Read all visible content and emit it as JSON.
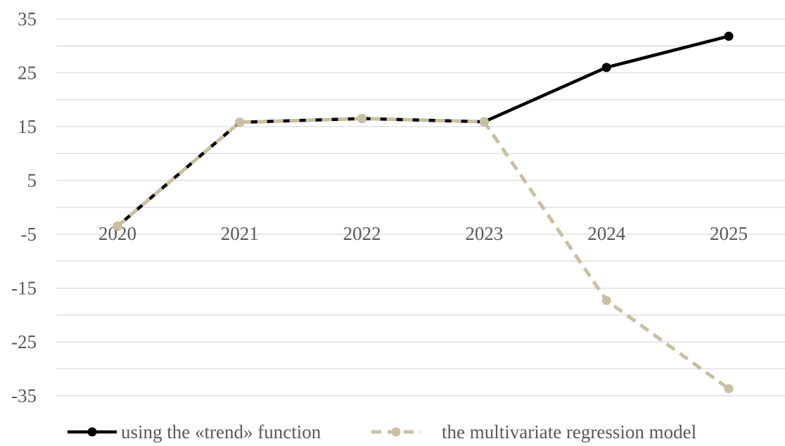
{
  "chart_data": {
    "type": "line",
    "title": "",
    "xlabel": "",
    "ylabel": "",
    "categories": [
      "2020",
      "2021",
      "2022",
      "2023",
      "2024",
      "2025"
    ],
    "y_ticks": [
      "35",
      "25",
      "15",
      "5",
      "-5",
      "-15",
      "-25",
      "-35"
    ],
    "ylim": [
      -40,
      40
    ],
    "grid": true,
    "legend_position": "bottom",
    "series": [
      {
        "name": "using the «trend» function",
        "values": [
          -3.5,
          15.8,
          16.5,
          15.9,
          26.0,
          31.8
        ],
        "color": "#000000",
        "style": "solid"
      },
      {
        "name": "the multivariate regression model",
        "values": [
          -3.5,
          15.8,
          16.5,
          15.9,
          -17.3,
          -33.7
        ],
        "color": "#C9C0A3",
        "style": "dashed"
      }
    ]
  }
}
